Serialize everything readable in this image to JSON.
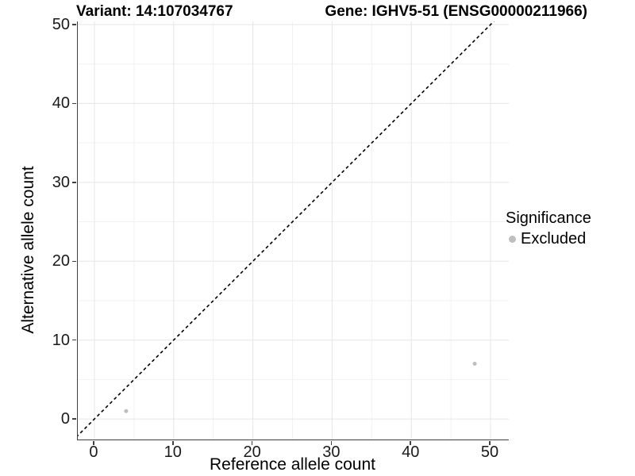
{
  "titles": {
    "left": "Variant: 14:107034767",
    "right": "Gene: IGHV5-51 (ENSG00000211966)"
  },
  "chart_data": {
    "type": "scatter",
    "xlabel": "Reference allele count",
    "ylabel": "Alternative allele count",
    "xlim": [
      -2.1,
      52.3
    ],
    "ylim": [
      -2.6,
      50.4
    ],
    "xticks": [
      0,
      10,
      20,
      30,
      40,
      50
    ],
    "yticks": [
      0,
      10,
      20,
      30,
      40,
      50
    ],
    "minor_xticks": [
      5,
      15,
      25,
      35,
      45
    ],
    "minor_yticks": [
      5,
      15,
      25,
      35,
      45
    ],
    "grid": "major+minor",
    "series": [
      {
        "name": "Excluded",
        "color": "#bebebe",
        "points": [
          {
            "x": 4,
            "y": 1
          },
          {
            "x": 48,
            "y": 7
          }
        ]
      }
    ],
    "reference_line": {
      "slope": 1,
      "intercept": 0,
      "style": "dashed",
      "color": "#000000"
    },
    "legend": {
      "title": "Significance",
      "position": "right",
      "items": [
        {
          "label": "Excluded",
          "color": "#bebebe"
        }
      ]
    }
  },
  "colors": {
    "grid_major": "#e6e6e6",
    "grid_minor": "#f2f2f2",
    "axis_line": "#404040",
    "tick_text": "#1a1a1a"
  }
}
